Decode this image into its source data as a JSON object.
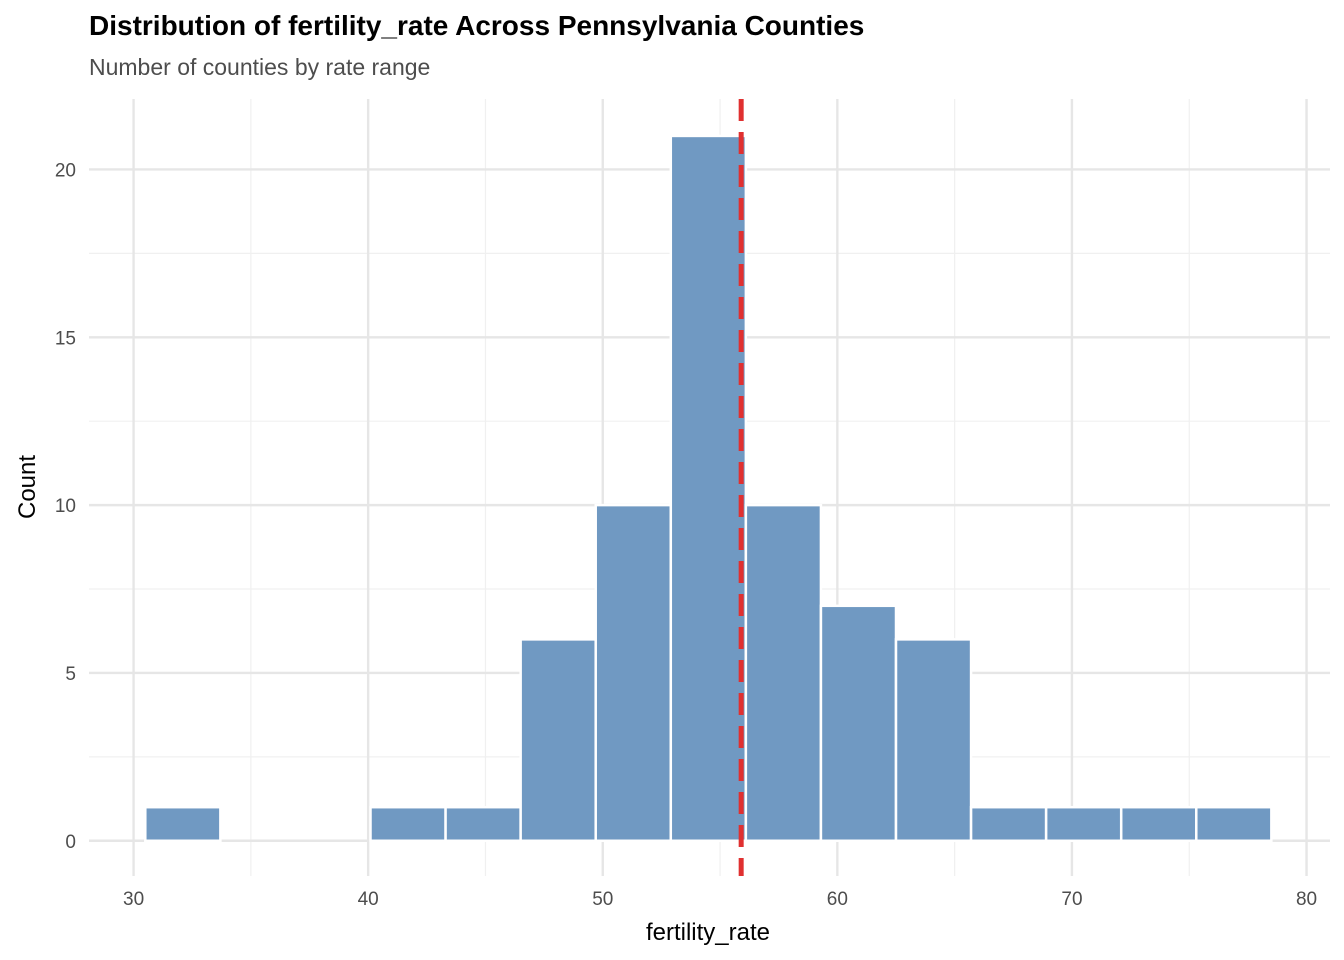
{
  "chart_data": {
    "type": "bar",
    "title": "Distribution of fertility_rate Across Pennsylvania Counties",
    "subtitle": "Number of counties by rate range",
    "xlabel": "fertility_rate",
    "ylabel": "Count",
    "xlim": [
      28.1,
      81.0
    ],
    "ylim": [
      -1.05,
      22.1
    ],
    "x_ticks": [
      30,
      40,
      50,
      60,
      70,
      80
    ],
    "x_minor_ticks": [
      35,
      45,
      55,
      65,
      75
    ],
    "y_ticks": [
      0,
      5,
      10,
      15,
      20
    ],
    "y_minor_ticks": [
      2.5,
      7.5,
      12.5,
      17.5
    ],
    "grid": true,
    "bins": [
      {
        "x0": 30.5,
        "x1": 33.7,
        "count": 1
      },
      {
        "x0": 40.1,
        "x1": 43.3,
        "count": 1
      },
      {
        "x0": 43.3,
        "x1": 46.5,
        "count": 1
      },
      {
        "x0": 46.5,
        "x1": 49.7,
        "count": 6
      },
      {
        "x0": 49.7,
        "x1": 52.9,
        "count": 10
      },
      {
        "x0": 52.9,
        "x1": 56.1,
        "count": 21
      },
      {
        "x0": 56.1,
        "x1": 59.3,
        "count": 10
      },
      {
        "x0": 59.3,
        "x1": 62.5,
        "count": 7
      },
      {
        "x0": 62.5,
        "x1": 65.7,
        "count": 6
      },
      {
        "x0": 65.7,
        "x1": 68.9,
        "count": 1
      },
      {
        "x0": 68.9,
        "x1": 72.1,
        "count": 1
      },
      {
        "x0": 72.1,
        "x1": 75.3,
        "count": 1
      },
      {
        "x0": 75.3,
        "x1": 78.5,
        "count": 1
      }
    ],
    "reference_line": {
      "x": 55.9,
      "style": "dashed"
    },
    "colors": {
      "bar_fill": "#7099c2",
      "bar_stroke": "#ffffff",
      "reference_line": "#e03030",
      "grid_major": "#e6e6e6",
      "grid_minor": "#f0f0f0"
    }
  }
}
